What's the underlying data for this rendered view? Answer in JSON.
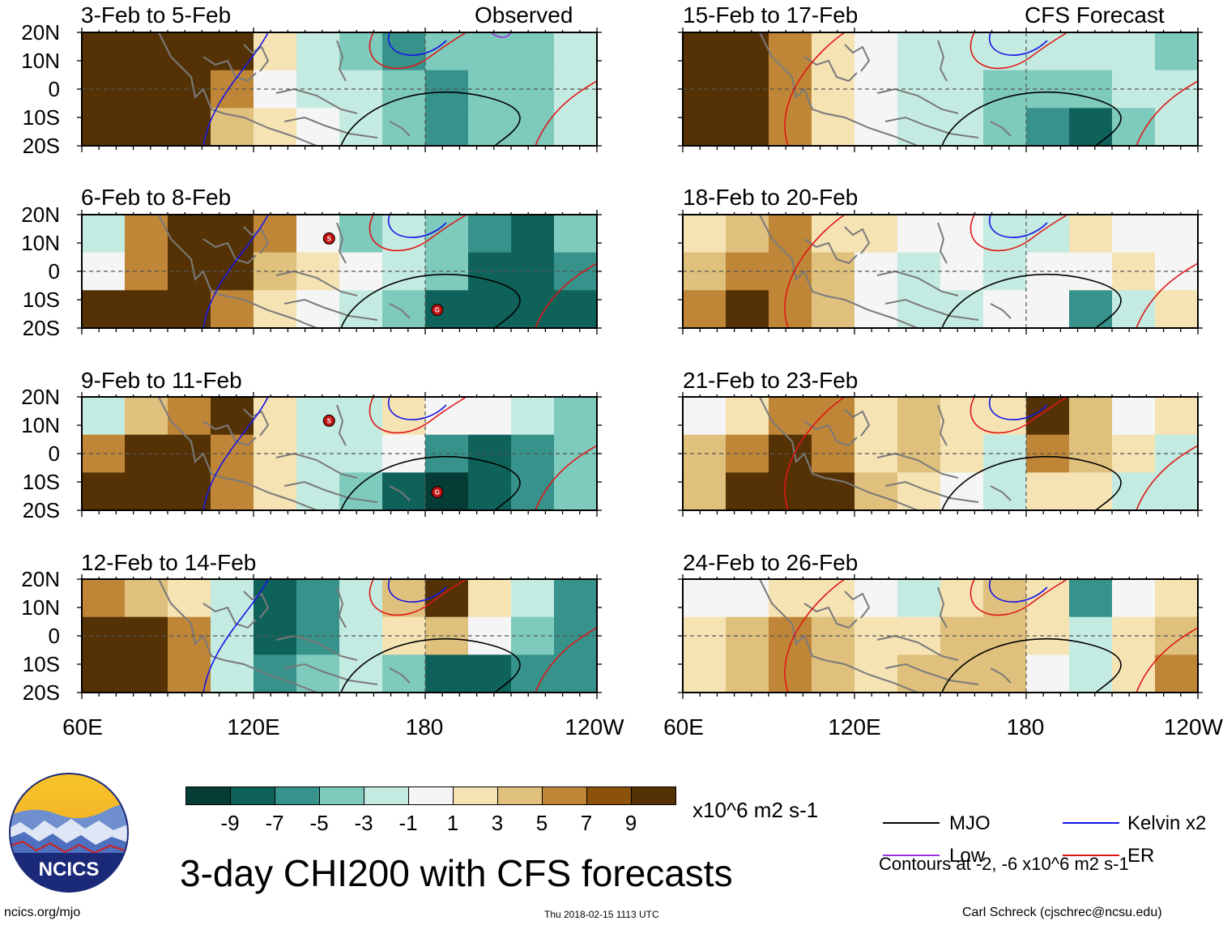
{
  "chart_data": {
    "type": "heatmap",
    "title": "3-day CHI200 with CFS forecasts",
    "units": "x10^6 m2 s-1",
    "variable": "CHI200",
    "lat_ticks": [
      "20N",
      "10N",
      "0",
      "10S",
      "20S"
    ],
    "lon_ticks": [
      "60E",
      "120E",
      "180",
      "120W"
    ],
    "observed_label": "Observed",
    "forecast_label": "CFS Forecast",
    "panels_observed": [
      {
        "period": "3-Feb to 5-Feb",
        "anomaly_field": [
          [
            8,
            9,
            9,
            8,
            3,
            -1,
            -3,
            -5,
            -4,
            -3,
            -4,
            -2
          ],
          [
            9,
            9,
            9,
            6,
            1,
            -1,
            -2,
            -4,
            -5,
            -3,
            -3,
            -2
          ],
          [
            9,
            9,
            8,
            5,
            2,
            0,
            -2,
            -3,
            -6,
            -4,
            -3,
            -1
          ]
        ]
      },
      {
        "period": "6-Feb to 8-Feb",
        "anomaly_field": [
          [
            -2,
            6,
            9,
            9,
            7,
            1,
            -3,
            -2,
            -4,
            -6,
            -7,
            -4
          ],
          [
            1,
            7,
            9,
            9,
            5,
            2,
            0,
            -2,
            -4,
            -7,
            -8,
            -6
          ],
          [
            8,
            9,
            9,
            7,
            3,
            1,
            -1,
            -3,
            -7,
            -8,
            -8,
            -7
          ]
        ]
      },
      {
        "period": "9-Feb to 11-Feb",
        "anomaly_field": [
          [
            -1,
            4,
            7,
            8,
            3,
            -2,
            -1,
            2,
            0,
            1,
            -2,
            -4
          ],
          [
            6,
            8,
            9,
            7,
            3,
            -1,
            -1,
            1,
            -6,
            -7,
            -5,
            -3
          ],
          [
            9,
            9,
            9,
            6,
            3,
            -1,
            -3,
            -7,
            -9,
            -8,
            -5,
            -3
          ]
        ]
      },
      {
        "period": "12-Feb to 14-Feb",
        "anomaly_field": [
          [
            7,
            5,
            3,
            -1,
            -7,
            -5,
            -2,
            5,
            8,
            3,
            -1,
            -5
          ],
          [
            9,
            9,
            7,
            -2,
            -8,
            -6,
            -1,
            3,
            5,
            1,
            -3,
            -6
          ],
          [
            9,
            9,
            7,
            -1,
            -6,
            -4,
            -1,
            -3,
            -7,
            -8,
            -6,
            -5
          ]
        ]
      }
    ],
    "panels_forecast": [
      {
        "period": "15-Feb to 17-Feb",
        "anomaly_field": [
          [
            9,
            9,
            7,
            2,
            1,
            -1,
            -1,
            -2,
            -1,
            -1,
            -2,
            -3
          ],
          [
            9,
            9,
            7,
            3,
            1,
            -1,
            -2,
            -4,
            -3,
            -3,
            -2,
            -2
          ],
          [
            9,
            9,
            7,
            3,
            1,
            -1,
            -2,
            -3,
            -5,
            -7,
            -3,
            -2
          ]
        ]
      },
      {
        "period": "18-Feb to 20-Feb",
        "anomaly_field": [
          [
            3,
            4,
            6,
            3,
            3,
            1,
            1,
            -2,
            -1,
            3,
            1,
            1
          ],
          [
            5,
            7,
            7,
            4,
            1,
            -1,
            1,
            -1,
            1,
            1,
            2,
            1
          ],
          [
            7,
            9,
            7,
            5,
            1,
            -2,
            -1,
            1,
            1,
            -6,
            -2,
            2
          ]
        ]
      },
      {
        "period": "21-Feb to 23-Feb",
        "anomaly_field": [
          [
            1,
            3,
            7,
            6,
            3,
            5,
            3,
            2,
            9,
            5,
            1,
            2
          ],
          [
            5,
            7,
            8,
            7,
            3,
            5,
            2,
            -2,
            6,
            5,
            2,
            -1
          ],
          [
            5,
            8,
            9,
            8,
            5,
            2,
            1,
            -2,
            3,
            2,
            -1,
            -2
          ]
        ]
      },
      {
        "period": "24-Feb to 26-Feb",
        "anomaly_field": [
          [
            1,
            1,
            3,
            3,
            1,
            -1,
            3,
            5,
            3,
            -5,
            1,
            3
          ],
          [
            3,
            5,
            7,
            5,
            3,
            3,
            5,
            5,
            3,
            -1,
            3,
            5
          ],
          [
            3,
            5,
            7,
            5,
            3,
            4,
            5,
            5,
            1,
            -1,
            3,
            7
          ]
        ]
      }
    ],
    "colorbar": {
      "labels": [
        "-9",
        "-7",
        "-5",
        "-3",
        "-1",
        "1",
        "3",
        "5",
        "7",
        "9"
      ],
      "colors": [
        "#053d36",
        "#0f625a",
        "#36928a",
        "#7ecabd",
        "#c4ebe1",
        "#f5f5f5",
        "#f5e3b4",
        "#dfc07d",
        "#c08638",
        "#8c510a",
        "#553205"
      ]
    },
    "legend": [
      {
        "name": "MJO",
        "color": "#000000"
      },
      {
        "name": "Kelvin x2",
        "color": "#1515e6"
      },
      {
        "name": "Low",
        "color": "#9b30e0"
      },
      {
        "name": "ER",
        "color": "#e01515"
      }
    ],
    "contour_note": "Contours at -2, -6 x10^6 m2 s-1",
    "storm_markers": [
      {
        "panel": "6-Feb to 8-Feb",
        "letter": "S"
      },
      {
        "panel": "6-Feb to 8-Feb",
        "letter": "G"
      },
      {
        "panel": "9-Feb to 11-Feb",
        "letter": "S"
      },
      {
        "panel": "9-Feb to 11-Feb",
        "letter": "G"
      }
    ]
  },
  "footer": {
    "logo_text": "NCICS",
    "url": "ncics.org/mjo",
    "timestamp": "Thu 2018-02-15 1113 UTC",
    "credit": "Carl Schreck (cjschrec@ncsu.edu)"
  }
}
